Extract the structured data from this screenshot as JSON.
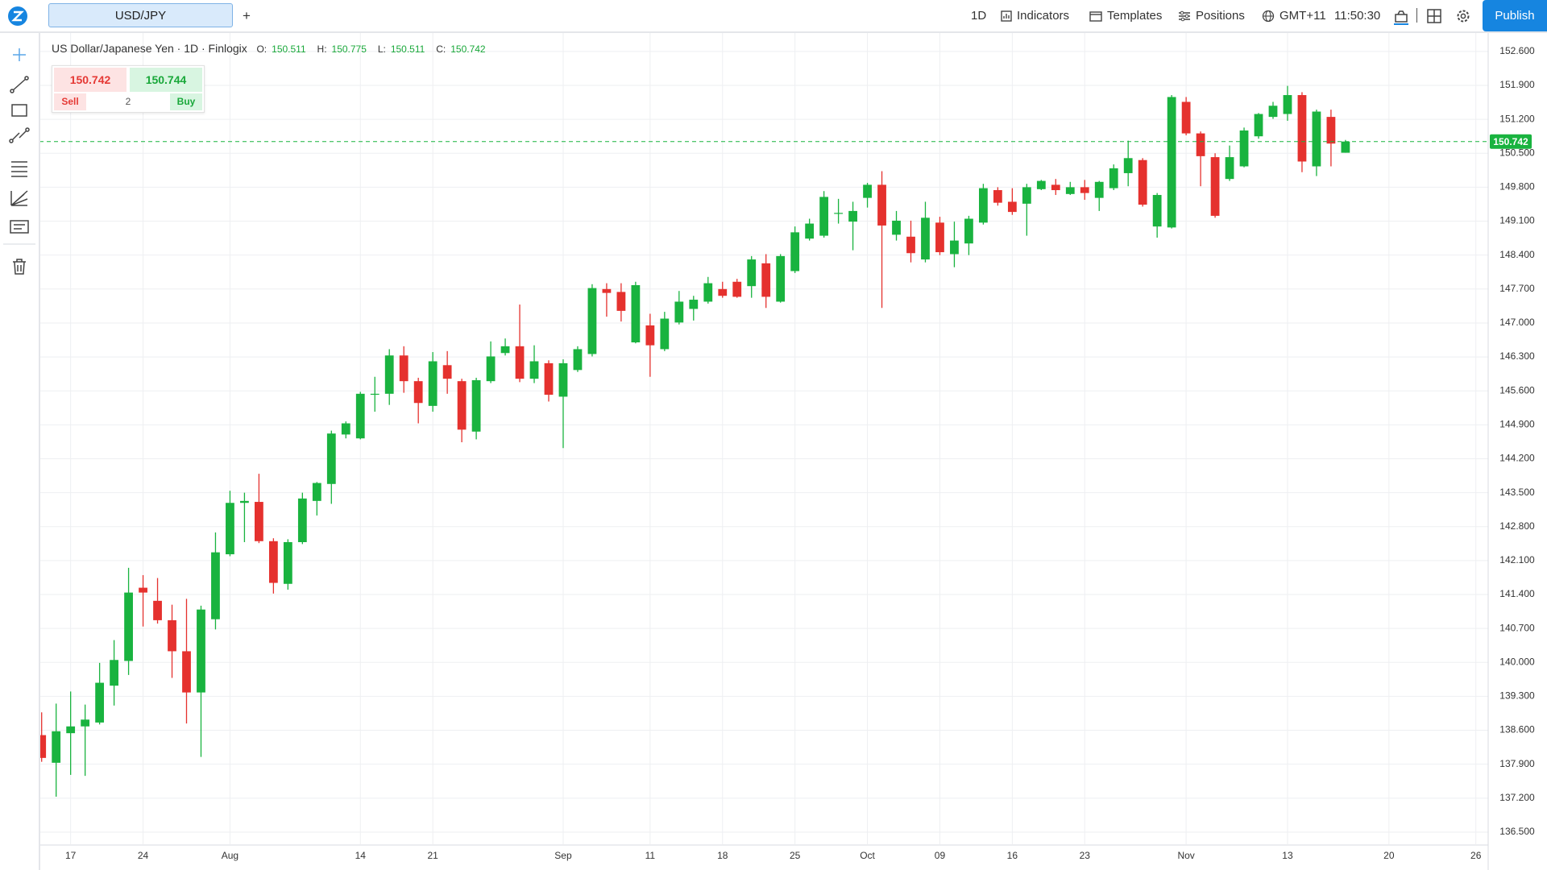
{
  "toolbar": {
    "symbol": "USD/JPY",
    "add": "+",
    "interval": "1D",
    "indicators": "Indicators",
    "templates": "Templates",
    "positions": "Positions",
    "timezone": "GMT+11",
    "time": "11:50:30",
    "publish": "Publish"
  },
  "legend": {
    "title": "US Dollar/Japanese Yen · 1D · Finlogix",
    "ohlc_labels": [
      "O:",
      "H:",
      "L:",
      "C:"
    ]
  },
  "trade": {
    "sell_price": 150.742,
    "buy_price": 150.744,
    "sell": "Sell",
    "quantity": 2,
    "buy": "Buy"
  },
  "chart_data": {
    "type": "candlestick",
    "up_color": "#19b33f",
    "down_color": "#e5312e",
    "grid": true,
    "categories": [
      null,
      null,
      "17",
      null,
      null,
      null,
      null,
      "24",
      null,
      null,
      null,
      null,
      null,
      "Aug",
      null,
      null,
      null,
      null,
      null,
      null,
      null,
      null,
      "14",
      null,
      null,
      null,
      null,
      "21",
      null,
      null,
      null,
      null,
      null,
      null,
      null,
      null,
      "Sep",
      null,
      null,
      null,
      null,
      null,
      "11",
      null,
      null,
      null,
      null,
      "18",
      null,
      null,
      null,
      null,
      "25",
      null,
      null,
      null,
      null,
      "Oct",
      null,
      null,
      null,
      null,
      "09",
      null,
      null,
      null,
      null,
      "16",
      null,
      null,
      null,
      null,
      "23",
      null,
      null,
      null,
      null,
      null,
      null,
      "Nov",
      null,
      null,
      null,
      null,
      null,
      null,
      "13",
      null,
      null,
      null,
      null,
      null,
      null,
      "20",
      null,
      null,
      null,
      null,
      null,
      "26"
    ],
    "open": [
      138.5,
      137.93,
      138.54,
      138.68,
      138.76,
      139.52,
      140.03,
      141.54,
      141.27,
      140.87,
      140.23,
      139.38,
      140.89,
      142.23,
      143.29,
      143.31,
      142.5,
      141.62,
      142.48,
      143.33,
      143.68,
      144.7,
      144.62,
      145.54,
      145.54,
      146.33,
      145.8,
      145.29,
      146.13,
      145.8,
      144.76,
      145.8,
      146.38,
      146.52,
      145.85,
      146.17,
      145.48,
      146.03,
      146.36,
      147.7,
      147.64,
      146.6,
      146.95,
      146.46,
      147.01,
      147.29,
      147.44,
      147.7,
      147.85,
      147.76,
      148.23,
      147.44,
      148.07,
      148.74,
      148.8,
      149.27,
      149.09,
      149.58,
      149.85,
      148.82,
      148.78,
      148.31,
      149.07,
      148.42,
      148.64,
      149.07,
      149.74,
      149.5,
      149.46,
      149.76,
      149.85,
      149.66,
      149.8,
      149.58,
      149.78,
      150.09,
      150.36,
      148.99,
      148.97,
      151.56,
      150.91,
      150.42,
      149.97,
      150.23,
      150.85,
      151.25,
      151.31,
      151.7,
      150.23,
      151.25,
      150.511,
      null,
      null,
      null,
      null,
      null,
      null,
      null,
      null,
      null
    ],
    "high": [
      138.97,
      139.15,
      139.4,
      139.13,
      139.99,
      140.46,
      141.95,
      141.8,
      141.74,
      141.19,
      141.31,
      141.17,
      142.68,
      143.54,
      143.5,
      143.89,
      142.56,
      142.54,
      143.5,
      143.72,
      144.78,
      144.97,
      145.58,
      145.89,
      146.46,
      146.52,
      145.87,
      146.4,
      146.42,
      145.85,
      145.87,
      146.62,
      146.68,
      147.38,
      146.54,
      146.23,
      146.25,
      146.52,
      147.8,
      147.82,
      147.82,
      147.85,
      147.19,
      147.23,
      147.66,
      147.56,
      147.95,
      147.85,
      147.91,
      148.38,
      148.42,
      148.42,
      148.99,
      149.15,
      149.72,
      149.56,
      149.5,
      149.89,
      150.13,
      149.31,
      149.11,
      149.5,
      149.19,
      149.09,
      149.21,
      149.87,
      149.8,
      149.78,
      149.87,
      149.95,
      149.97,
      149.91,
      149.95,
      149.93,
      150.27,
      150.76,
      150.4,
      149.68,
      151.7,
      151.66,
      150.95,
      150.5,
      150.66,
      151.03,
      151.33,
      151.56,
      151.89,
      151.76,
      151.4,
      151.4,
      150.775,
      null,
      null,
      null,
      null,
      null,
      null,
      null,
      null,
      null
    ],
    "low": [
      137.95,
      137.23,
      137.68,
      137.66,
      138.72,
      139.11,
      139.74,
      140.74,
      140.8,
      139.68,
      138.74,
      138.05,
      140.68,
      142.19,
      142.48,
      142.46,
      141.42,
      141.5,
      142.44,
      143.03,
      143.27,
      144.62,
      144.6,
      145.17,
      145.31,
      145.56,
      144.93,
      145.17,
      145.54,
      144.54,
      144.6,
      145.76,
      146.33,
      145.78,
      145.76,
      145.38,
      144.42,
      145.99,
      146.31,
      147.13,
      147.03,
      146.58,
      145.89,
      146.42,
      146.97,
      147.05,
      147.4,
      147.52,
      147.52,
      147.52,
      147.31,
      147.42,
      148.03,
      148.7,
      148.76,
      149.05,
      148.5,
      149.38,
      147.31,
      148.7,
      148.25,
      148.25,
      148.4,
      148.15,
      148.4,
      149.03,
      149.42,
      149.23,
      148.8,
      149.74,
      149.64,
      149.64,
      149.54,
      149.31,
      149.74,
      149.82,
      149.4,
      148.76,
      148.95,
      150.87,
      149.82,
      149.17,
      149.93,
      150.21,
      150.8,
      151.21,
      151.17,
      150.11,
      150.03,
      150.23,
      150.511,
      null,
      null,
      null,
      null,
      null,
      null,
      null,
      null,
      null
    ],
    "close": [
      138.03,
      138.58,
      138.68,
      138.82,
      139.58,
      140.05,
      141.44,
      141.44,
      140.87,
      140.23,
      139.38,
      141.09,
      142.27,
      143.29,
      143.33,
      142.5,
      141.64,
      142.48,
      143.38,
      143.7,
      144.72,
      144.93,
      145.54,
      145.54,
      146.33,
      145.8,
      145.35,
      146.21,
      145.85,
      144.8,
      145.82,
      146.31,
      146.52,
      145.85,
      146.21,
      145.52,
      146.17,
      146.46,
      147.72,
      147.62,
      147.25,
      147.78,
      146.54,
      147.09,
      147.44,
      147.48,
      147.82,
      147.56,
      147.54,
      148.31,
      147.54,
      148.38,
      148.87,
      149.05,
      149.6,
      149.27,
      149.31,
      149.85,
      149.01,
      149.11,
      148.44,
      149.17,
      148.46,
      148.7,
      149.15,
      149.78,
      149.48,
      149.29,
      149.8,
      149.93,
      149.74,
      149.8,
      149.68,
      149.91,
      150.19,
      150.4,
      149.44,
      149.64,
      151.66,
      150.91,
      150.44,
      149.21,
      150.42,
      150.97,
      151.31,
      151.48,
      151.7,
      150.33,
      151.36,
      150.7,
      150.742,
      null,
      null,
      null,
      null,
      null,
      null,
      null,
      null,
      null
    ],
    "ylim": [
      136.25,
      152.93
    ],
    "yticks": [
      {
        "value": 152.6,
        "label": "152.600"
      },
      {
        "value": 151.9,
        "label": "151.900"
      },
      {
        "value": 151.2,
        "label": "151.200"
      },
      {
        "value": 150.5,
        "label": "150.500"
      },
      {
        "value": 149.8,
        "label": "149.800"
      },
      {
        "value": 149.1,
        "label": "149.100"
      },
      {
        "value": 148.4,
        "label": "148.400"
      },
      {
        "value": 147.7,
        "label": "147.700"
      },
      {
        "value": 147.0,
        "label": "147.000"
      },
      {
        "value": 146.3,
        "label": "146.300"
      },
      {
        "value": 145.6,
        "label": "145.600"
      },
      {
        "value": 144.9,
        "label": "144.900"
      },
      {
        "value": 144.2,
        "label": "144.200"
      },
      {
        "value": 143.5,
        "label": "143.500"
      },
      {
        "value": 142.8,
        "label": "142.800"
      },
      {
        "value": 142.1,
        "label": "142.100"
      },
      {
        "value": 141.4,
        "label": "141.400"
      },
      {
        "value": 140.7,
        "label": "140.700"
      },
      {
        "value": 140.0,
        "label": "140.000"
      },
      {
        "value": 139.3,
        "label": "139.300"
      },
      {
        "value": 138.6,
        "label": "138.600"
      },
      {
        "value": 137.9,
        "label": "137.900"
      },
      {
        "value": 137.2,
        "label": "137.200"
      },
      {
        "value": 136.5,
        "label": "136.500"
      }
    ]
  }
}
